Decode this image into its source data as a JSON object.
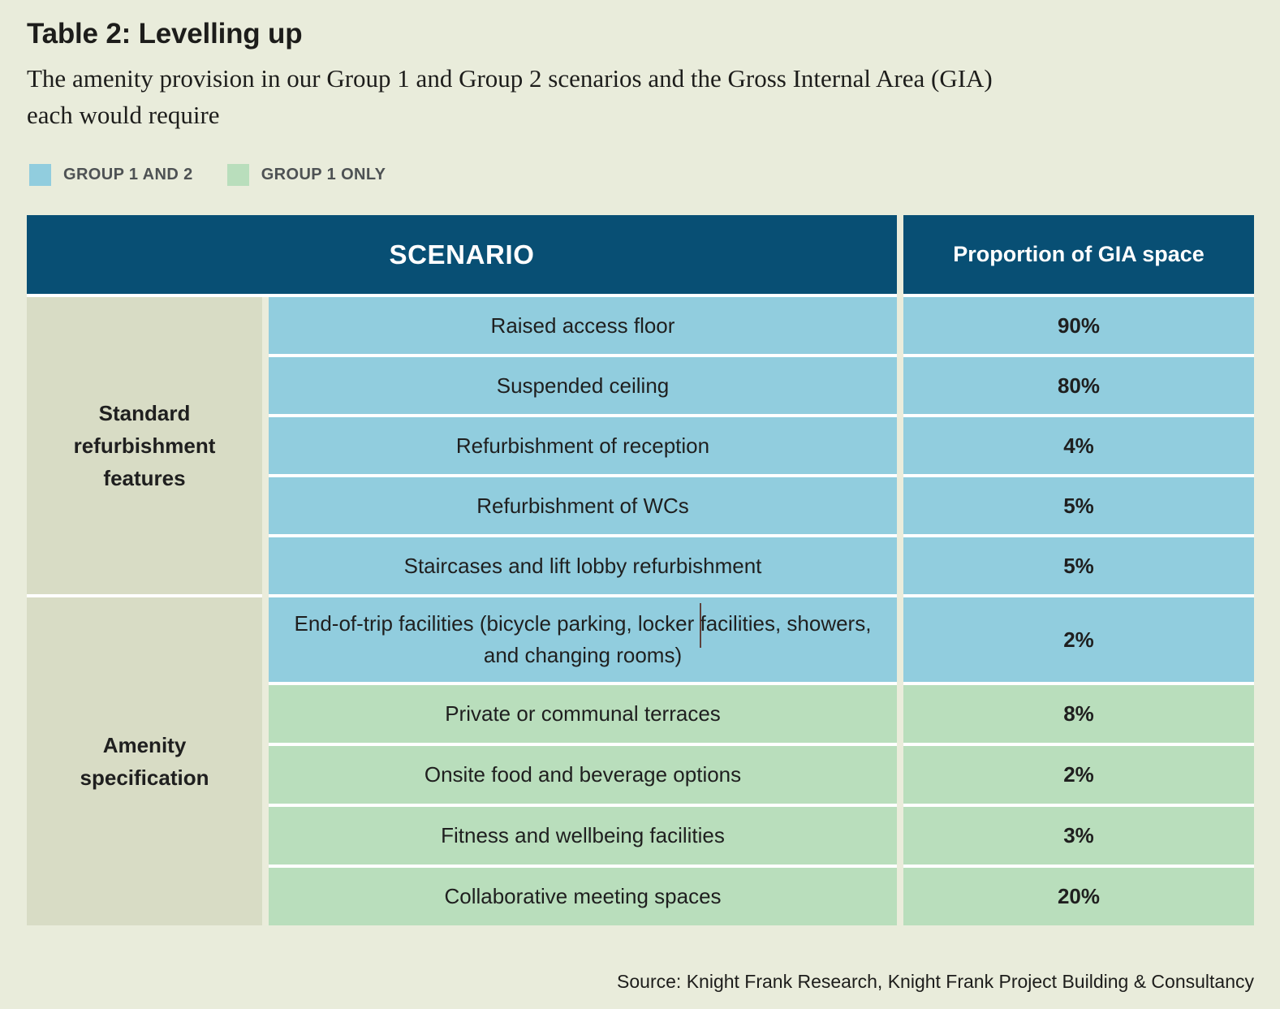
{
  "page": {
    "title": "Table 2: Levelling up",
    "subtitle": "The amenity provision in our Group 1 and Group 2 scenarios and the Gross Internal Area (GIA) each would require",
    "subtitle_line1": "The amenity provision in our Group 1 and Group 2 scenarios and the Gross Internal Area (GIA)",
    "subtitle_line2": "each would require",
    "source": "Source: Knight Frank Research, Knight Frank Project Building & Consultancy"
  },
  "legend": {
    "items": [
      {
        "label": "GROUP 1 AND 2",
        "color": "#91cdde"
      },
      {
        "label": "GROUP 1 ONLY",
        "color": "#b9debc"
      }
    ]
  },
  "table": {
    "header": {
      "scenario": "SCENARIO",
      "value": "Proportion of GIA space"
    },
    "groups": [
      {
        "category": "Standard refurbishment features",
        "rows": [
          {
            "scenario": "Raised access floor",
            "value": "90%",
            "tone": "blue"
          },
          {
            "scenario": "Suspended ceiling",
            "value": "80%",
            "tone": "blue"
          },
          {
            "scenario": "Refurbishment of reception",
            "value": "4%",
            "tone": "blue"
          },
          {
            "scenario": "Refurbishment of WCs",
            "value": "5%",
            "tone": "blue"
          },
          {
            "scenario": "Staircases and lift lobby refurbishment",
            "value": "5%",
            "tone": "blue"
          }
        ]
      },
      {
        "category": "Amenity specification",
        "rows": [
          {
            "scenario": "End-of-trip facilities (bicycle parking, locker facilities, showers, and changing rooms)",
            "value": "2%",
            "tone": "blue"
          },
          {
            "scenario": "Private or communal terraces",
            "value": "8%",
            "tone": "green"
          },
          {
            "scenario": "Onsite food and beverage options",
            "value": "2%",
            "tone": "green"
          },
          {
            "scenario": "Fitness and wellbeing facilities",
            "value": "3%",
            "tone": "green"
          },
          {
            "scenario": "Collaborative meeting spaces",
            "value": "20%",
            "tone": "green"
          }
        ]
      }
    ]
  },
  "colors": {
    "background": "#e9ecdb",
    "header_blue": "#084f74",
    "row_blue": "#91cdde",
    "row_green": "#b9debc",
    "category_beige": "#d8dcc5",
    "row_gap_white": "#ffffff",
    "column_gap_cream": "#eaecdb",
    "text": "#1f1f1f",
    "legend_text": "#4e5254"
  },
  "chart_data": {
    "type": "table",
    "title": "Table 2: Levelling up",
    "subtitle": "The amenity provision in our Group 1 and Group 2 scenarios and the Gross Internal Area (GIA) each would require",
    "columns": [
      "SCENARIO",
      "Proportion of GIA space"
    ],
    "legend": [
      "GROUP 1 AND 2",
      "GROUP 1 ONLY"
    ],
    "rows": [
      {
        "category": "Standard refurbishment features",
        "scenario": "Raised access floor",
        "proportion_of_gia_space": "90%",
        "groups": "GROUP 1 AND 2"
      },
      {
        "category": "Standard refurbishment features",
        "scenario": "Suspended ceiling",
        "proportion_of_gia_space": "80%",
        "groups": "GROUP 1 AND 2"
      },
      {
        "category": "Standard refurbishment features",
        "scenario": "Refurbishment of reception",
        "proportion_of_gia_space": "4%",
        "groups": "GROUP 1 AND 2"
      },
      {
        "category": "Standard refurbishment features",
        "scenario": "Refurbishment of WCs",
        "proportion_of_gia_space": "5%",
        "groups": "GROUP 1 AND 2"
      },
      {
        "category": "Standard refurbishment features",
        "scenario": "Staircases and lift lobby refurbishment",
        "proportion_of_gia_space": "5%",
        "groups": "GROUP 1 AND 2"
      },
      {
        "category": "Amenity specification",
        "scenario": "End-of-trip facilities (bicycle parking, locker facilities, showers, and changing rooms)",
        "proportion_of_gia_space": "2%",
        "groups": "GROUP 1 AND 2"
      },
      {
        "category": "Amenity specification",
        "scenario": "Private or communal terraces",
        "proportion_of_gia_space": "8%",
        "groups": "GROUP 1 ONLY"
      },
      {
        "category": "Amenity specification",
        "scenario": "Onsite food and beverage options",
        "proportion_of_gia_space": "2%",
        "groups": "GROUP 1 ONLY"
      },
      {
        "category": "Amenity specification",
        "scenario": "Fitness and wellbeing facilities",
        "proportion_of_gia_space": "3%",
        "groups": "GROUP 1 ONLY"
      },
      {
        "category": "Amenity specification",
        "scenario": "Collaborative meeting spaces",
        "proportion_of_gia_space": "20%",
        "groups": "GROUP 1 ONLY"
      }
    ],
    "source": "Source: Knight Frank Research, Knight Frank Project Building & Consultancy"
  }
}
